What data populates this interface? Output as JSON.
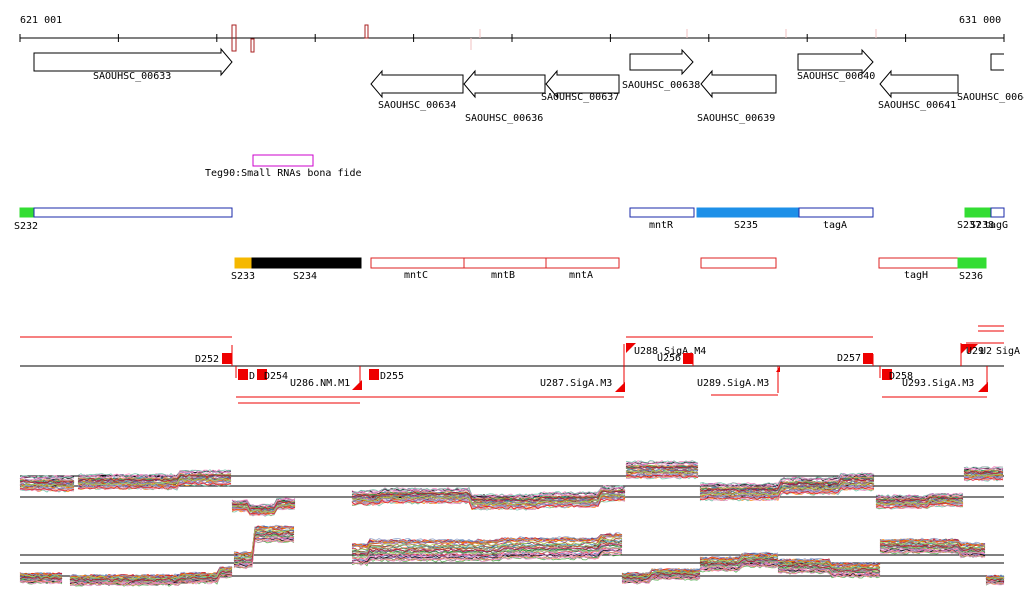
{
  "scale": {
    "start_label": "621 001",
    "end_label": "631 000"
  },
  "genes": [
    {
      "name": "SAOUHSC_00633",
      "strand": "+"
    },
    {
      "name": "SAOUHSC_00634",
      "strand": "-"
    },
    {
      "name": "SAOUHSC_00636",
      "strand": "-"
    },
    {
      "name": "SAOUHSC_00637",
      "strand": "-"
    },
    {
      "name": "SAOUHSC_00638",
      "strand": "+"
    },
    {
      "name": "SAOUHSC_00639",
      "strand": "-"
    },
    {
      "name": "SAOUHSC_00640",
      "strand": "+"
    },
    {
      "name": "SAOUHSC_00641",
      "strand": "-"
    },
    {
      "name": "SAOUHSC_0064",
      "strand": "+"
    }
  ],
  "small_rna": {
    "label": "Teg90:Small RNAs bona fide",
    "color": "#cc00cc"
  },
  "segments_track1": [
    {
      "name": "S232",
      "fill": "#33dd33"
    },
    {
      "name": "mntR",
      "fill": "#ffffff"
    },
    {
      "name": "S235",
      "fill": "#1e90e8"
    },
    {
      "name": "tagA",
      "fill": "#ffffff"
    },
    {
      "name": "S237",
      "fill": "#33dd33"
    },
    {
      "name": "S238",
      "fill": "#33dd33"
    },
    {
      "name": "tagG",
      "fill": "#ffffff"
    }
  ],
  "segments_track2": [
    {
      "name": "S233",
      "fill": "#f5b800"
    },
    {
      "name": "S234",
      "fill": "#000000"
    },
    {
      "name": "mntC",
      "fill": "#ffffff"
    },
    {
      "name": "mntB",
      "fill": "#ffffff"
    },
    {
      "name": "mntA",
      "fill": "#ffffff"
    },
    {
      "name": "tagH",
      "fill": "#ffffff"
    },
    {
      "name": "S236",
      "fill": "#33dd33"
    }
  ],
  "promoters": [
    {
      "name": "D252"
    },
    {
      "name": "D"
    },
    {
      "name": "D254"
    },
    {
      "name": "U286.NM.M1"
    },
    {
      "name": "D255"
    },
    {
      "name": "U287.SigA.M3"
    },
    {
      "name": "U288.SigA.M4"
    },
    {
      "name": "U256"
    },
    {
      "name": "U289.SigA.M3"
    },
    {
      "name": "D257"
    },
    {
      "name": "D258"
    },
    {
      "name": "U293.SigA.M3"
    },
    {
      "name": "U29"
    },
    {
      "name": "U2"
    },
    {
      "name": "SigA"
    }
  ],
  "colors": {
    "gene_outline": "#000000",
    "track_blue": "#1a2aa8",
    "track_red": "#dd2222",
    "promoter_red": "#ee0000",
    "axis": "#000000"
  },
  "expression_panels": [
    {
      "name": "expression-upper"
    },
    {
      "name": "expression-lower"
    }
  ]
}
